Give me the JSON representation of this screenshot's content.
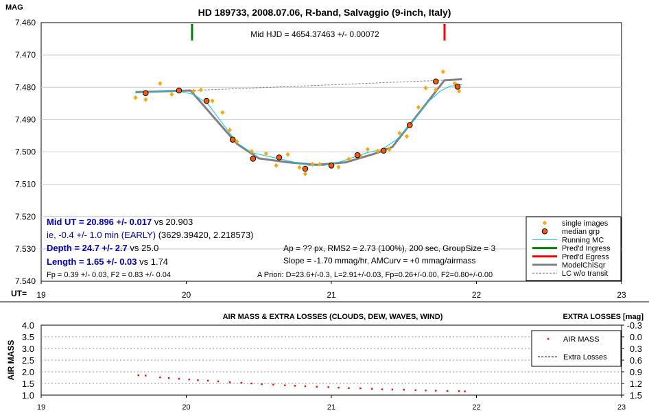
{
  "chart_data": [
    {
      "type": "scatter",
      "title": "HD 189733, 2008.07.06, R-band, Salvaggio (9-inch, Italy)",
      "ylabel": "MAG",
      "xlabel": "UT=",
      "xlim": [
        19,
        23
      ],
      "ylim": [
        7.46,
        7.54
      ],
      "y_inverted": true,
      "x_ticks": [
        "19",
        "20",
        "21",
        "22",
        "23"
      ],
      "y_ticks": [
        "7.460",
        "7.470",
        "7.480",
        "7.490",
        "7.500",
        "7.510",
        "7.520",
        "7.530",
        "7.540"
      ],
      "annotations": {
        "mid_hjd": "Mid HJD = 4654.37463 +/- 0.00072",
        "mid_ut_bold": "Mid UT = 20.896 +/- 0.017",
        "mid_ut_rest": " vs 20.903",
        "ie_line_blue": "ie, -0.4 +/- 1.0 min (EARLY)",
        "ie_line_rest": " (3629.39420, 2.218573)",
        "depth_bold": "Depth = 24.7 +/- 2.7",
        "depth_rest": " vs 25.0",
        "length_bold": "Length = 1.65 +/- 0.03",
        "length_rest": " vs 1.74",
        "fp_line": "Fp = 0.39 +/- 0.03, F2 = 0.83 +/- 0.04",
        "ap_line": "Ap = ?? px, RMS2 = 2.73 (100%), 200 sec, GroupSize = 3",
        "slope_line": "Slope = -1.70 mmag/hr, AMCurv = +0 mmag/airmass",
        "apriori_line": "A Priori: D=23.6+/-0.3, L=2.91+/-0.03, Fp=0.26+/-0.00, F2=0.80+/-0.00"
      },
      "ingress_ut": 20.04,
      "egress_ut": 21.78,
      "legend_position": "bottom-right",
      "legend": [
        {
          "label": "single images",
          "color": "#ffa500",
          "style": "diamond"
        },
        {
          "label": "median grp",
          "color": "#ff5a00",
          "style": "circle"
        },
        {
          "label": "Running MC",
          "color": "#00c8f0",
          "style": "line"
        },
        {
          "label": "Pred'd Ingress",
          "color": "#008000",
          "style": "thick-line"
        },
        {
          "label": "Pred'd Egress",
          "color": "#ff0000",
          "style": "thick-line"
        },
        {
          "label": "ModelChiSqr",
          "color": "#808080",
          "style": "thick-line"
        },
        {
          "label": "LC w/o transit",
          "color": "#808080",
          "style": "dashed"
        }
      ],
      "series": [
        {
          "name": "single images",
          "x": [
            19.65,
            19.72,
            19.82,
            19.9,
            19.95,
            20.05,
            20.1,
            20.18,
            20.25,
            20.3,
            20.35,
            20.45,
            20.55,
            20.62,
            20.65,
            20.7,
            20.78,
            20.82,
            20.87,
            20.92,
            21.0,
            21.05,
            21.12,
            21.2,
            21.25,
            21.32,
            21.4,
            21.47,
            21.52,
            21.6,
            21.65,
            21.72,
            21.77,
            21.85,
            21.88
          ],
          "y": [
            7.4832,
            7.4838,
            7.4788,
            7.4822,
            7.4808,
            7.4812,
            7.4808,
            7.4842,
            7.4878,
            7.4932,
            7.4968,
            7.4998,
            7.5005,
            7.5042,
            7.5018,
            7.5008,
            7.5048,
            7.5068,
            7.5038,
            7.5038,
            7.5038,
            7.5047,
            7.5022,
            7.5012,
            7.4992,
            7.4997,
            7.4992,
            7.4942,
            7.4952,
            7.4862,
            7.4802,
            7.4808,
            7.4752,
            7.4788,
            7.4812
          ]
        },
        {
          "name": "median grp",
          "x": [
            19.72,
            19.95,
            20.14,
            20.32,
            20.46,
            20.64,
            20.82,
            21.0,
            21.18,
            21.36,
            21.54,
            21.72,
            21.87
          ],
          "y": [
            7.4818,
            7.481,
            7.4842,
            7.4962,
            7.5021,
            7.5017,
            7.5052,
            7.5042,
            7.501,
            7.4996,
            7.4917,
            7.4782,
            7.4798
          ]
        },
        {
          "name": "Running MC",
          "x": [
            19.65,
            19.75,
            19.85,
            19.95,
            20.05,
            20.15,
            20.25,
            20.35,
            20.45,
            20.55,
            20.65,
            20.75,
            20.85,
            20.95,
            21.05,
            21.15,
            21.25,
            21.35,
            21.45,
            21.55,
            21.65,
            21.75,
            21.82,
            21.9
          ],
          "y": [
            7.4818,
            7.4815,
            7.4813,
            7.4812,
            7.4822,
            7.4852,
            7.4912,
            7.4972,
            7.5002,
            7.5012,
            7.5022,
            7.5032,
            7.5042,
            7.5042,
            7.5032,
            7.5017,
            7.5002,
            7.4992,
            7.4962,
            7.4912,
            7.4852,
            7.4812,
            7.4796,
            7.4792
          ]
        },
        {
          "name": "ModelChiSqr",
          "x": [
            19.65,
            20.03,
            20.35,
            20.5,
            20.7,
            20.9,
            21.1,
            21.3,
            21.42,
            21.78,
            21.9
          ],
          "y": [
            7.4815,
            7.481,
            7.4975,
            7.502,
            7.5032,
            7.504,
            7.5032,
            7.5005,
            7.4985,
            7.4778,
            7.4775
          ]
        },
        {
          "name": "LC w/o transit",
          "x": [
            20.03,
            21.78
          ],
          "y": [
            7.481,
            7.4778
          ]
        }
      ]
    },
    {
      "type": "scatter",
      "title": "AIR MASS & EXTRA LOSSES (CLOUDS, DEW, WAVES, WIND)",
      "ylabel": "AIR MASS",
      "y2label": "EXTRA LOSSES [mag]",
      "xlim": [
        19,
        23
      ],
      "ylim": [
        1.0,
        4.0
      ],
      "y2lim": [
        -0.3,
        1.5
      ],
      "x_ticks": [
        "19",
        "20",
        "21",
        "22",
        "23"
      ],
      "y_ticks": [
        "4.0",
        "3.5",
        "3.0",
        "2.5",
        "2.0",
        "1.5",
        "1.0"
      ],
      "y2_ticks": [
        "-0.3",
        "0.0",
        "0.3",
        "0.6",
        "0.9",
        "1.2",
        "1.5"
      ],
      "legend_position": "top-right",
      "legend": [
        {
          "label": "AIR MASS",
          "color": "#ff0000",
          "style": "dot"
        },
        {
          "label": "Extra Losses",
          "color": "#0000c0",
          "style": "dashed"
        }
      ],
      "series": [
        {
          "name": "AIR MASS",
          "x": [
            19.67,
            19.72,
            19.82,
            19.88,
            19.95,
            20.02,
            20.08,
            20.15,
            20.22,
            20.3,
            20.38,
            20.45,
            20.52,
            20.6,
            20.68,
            20.75,
            20.82,
            20.9,
            20.98,
            21.05,
            21.12,
            21.2,
            21.28,
            21.35,
            21.42,
            21.5,
            21.58,
            21.65,
            21.72,
            21.8,
            21.88,
            21.92
          ],
          "y": [
            1.85,
            1.84,
            1.76,
            1.73,
            1.7,
            1.67,
            1.64,
            1.62,
            1.59,
            1.55,
            1.53,
            1.5,
            1.47,
            1.45,
            1.42,
            1.4,
            1.38,
            1.36,
            1.34,
            1.32,
            1.3,
            1.29,
            1.27,
            1.25,
            1.24,
            1.23,
            1.21,
            1.2,
            1.19,
            1.18,
            1.17,
            1.16
          ]
        }
      ]
    }
  ]
}
